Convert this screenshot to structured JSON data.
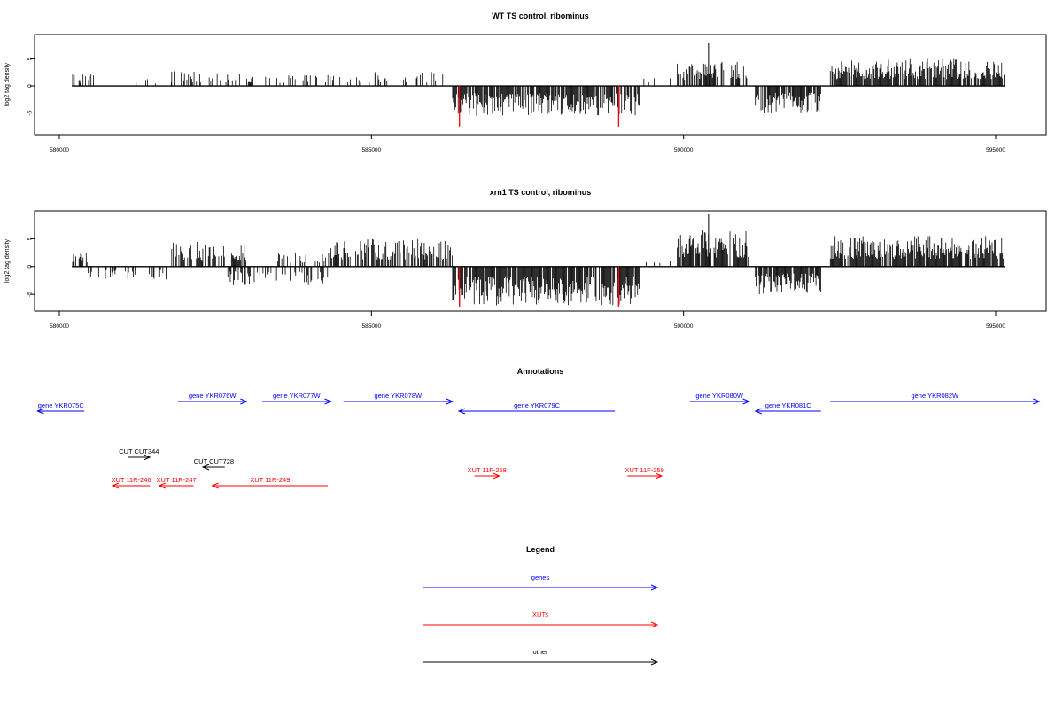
{
  "colors": {
    "gene": "#0000ff",
    "xut": "#ff0000",
    "other": "#000000",
    "highlight": "#ff0000",
    "signal": "#000000",
    "frame": "#000000"
  },
  "chart_data": [
    {
      "type": "bar",
      "title": "WT TS control, ribominus",
      "ylabel": "log2 tag density",
      "xlim": [
        579900,
        595150
      ],
      "ylim": [
        -9,
        9.5
      ],
      "xticks": [
        580000,
        585000,
        590000,
        595000
      ],
      "xtick_labels": [
        "580000",
        "585000",
        "590000",
        "595000"
      ],
      "yticks": [
        -5,
        0,
        5
      ],
      "ytick_labels": [
        "-5",
        "0",
        "5"
      ],
      "grid": false,
      "highlight_x": [
        586410,
        588960
      ],
      "highlight_values": [
        -7.5,
        -7.5
      ],
      "signal_segments": [
        {
          "start": 580200,
          "end": 580550,
          "amp": 2.2,
          "density": 0.35,
          "seed": 1
        },
        {
          "start": 580950,
          "end": 581800,
          "amp": 1.5,
          "density": 0.05,
          "seed": 2
        },
        {
          "start": 581800,
          "end": 583100,
          "amp": 2.8,
          "density": 0.35,
          "seed": 3
        },
        {
          "start": 583100,
          "end": 584200,
          "amp": 2.2,
          "density": 0.15,
          "seed": 4
        },
        {
          "start": 584200,
          "end": 586300,
          "amp": 2.6,
          "density": 0.25,
          "seed": 5
        },
        {
          "start": 586300,
          "end": 589300,
          "amp": -5.5,
          "density": 0.8,
          "seed": 6
        },
        {
          "start": 589300,
          "end": 589900,
          "amp": 1.5,
          "density": 0.1,
          "seed": 7
        },
        {
          "start": 589900,
          "end": 591050,
          "amp": 4.5,
          "density": 0.7,
          "seed": 8
        },
        {
          "start": 591150,
          "end": 592200,
          "amp": -5,
          "density": 0.8,
          "seed": 9
        },
        {
          "start": 592350,
          "end": 595150,
          "amp": 5,
          "density": 0.85,
          "seed": 10
        }
      ],
      "peaks": [
        [
          590400,
          8
        ],
        [
          586410,
          -4.5
        ],
        [
          588960,
          -4.5
        ]
      ]
    },
    {
      "type": "bar",
      "title": "xrn1 TS control, ribominus",
      "ylabel": "log2 tag density",
      "xlim": [
        579900,
        595150
      ],
      "ylim": [
        -8,
        10
      ],
      "xticks": [
        580000,
        585000,
        590000,
        595000
      ],
      "xtick_labels": [
        "580000",
        "585000",
        "590000",
        "595000"
      ],
      "yticks": [
        -5,
        0,
        5
      ],
      "ytick_labels": [
        "-5",
        "0",
        "5"
      ],
      "grid": false,
      "highlight_x": [
        586410,
        588960
      ],
      "highlight_values": [
        -7.2,
        -7.2
      ],
      "signal_segments": [
        {
          "start": 580200,
          "end": 580450,
          "amp": 2.8,
          "density": 0.5,
          "seed": 11
        },
        {
          "start": 580450,
          "end": 580700,
          "amp": -2.8,
          "density": 0.4,
          "seed": 12
        },
        {
          "start": 580700,
          "end": 581800,
          "amp": -2.5,
          "density": 0.3,
          "seed": 13
        },
        {
          "start": 581800,
          "end": 583000,
          "amp": 4.5,
          "density": 0.6,
          "seed": 14
        },
        {
          "start": 582700,
          "end": 584300,
          "amp": -3.5,
          "density": 0.4,
          "seed": 15
        },
        {
          "start": 583500,
          "end": 584300,
          "amp": 2.5,
          "density": 0.3,
          "seed": 16
        },
        {
          "start": 584300,
          "end": 586300,
          "amp": 5,
          "density": 0.6,
          "seed": 17
        },
        {
          "start": 586300,
          "end": 589300,
          "amp": -7,
          "density": 0.9,
          "seed": 18
        },
        {
          "start": 589300,
          "end": 589900,
          "amp": 2,
          "density": 0.2,
          "seed": 19
        },
        {
          "start": 589900,
          "end": 591050,
          "amp": 6.5,
          "density": 0.9,
          "seed": 20
        },
        {
          "start": 591150,
          "end": 592200,
          "amp": -5,
          "density": 0.9,
          "seed": 21
        },
        {
          "start": 592350,
          "end": 595150,
          "amp": 5.5,
          "density": 0.9,
          "seed": 22
        }
      ],
      "peaks": [
        [
          590400,
          9.5
        ],
        [
          586410,
          -7
        ],
        [
          588960,
          -7
        ]
      ]
    }
  ],
  "annotations": {
    "title": "Annotations",
    "features": [
      {
        "label": "gene YKR075C",
        "kind": "gene",
        "start": 579650,
        "end": 580400,
        "strand": "-",
        "row": 1
      },
      {
        "label": "gene YKR076W",
        "kind": "gene",
        "start": 581900,
        "end": 583000,
        "strand": "+",
        "row": 0
      },
      {
        "label": "gene YKR077W",
        "kind": "gene",
        "start": 583250,
        "end": 584350,
        "strand": "+",
        "row": 0
      },
      {
        "label": "gene YKR078W",
        "kind": "gene",
        "start": 584550,
        "end": 586300,
        "strand": "+",
        "row": 0
      },
      {
        "label": "gene YKR079C",
        "kind": "gene",
        "start": 586400,
        "end": 588900,
        "strand": "-",
        "row": 1
      },
      {
        "label": "gene YKR080W",
        "kind": "gene",
        "start": 590100,
        "end": 591050,
        "strand": "+",
        "row": 0
      },
      {
        "label": "gene YKR081C",
        "kind": "gene",
        "start": 591150,
        "end": 592200,
        "strand": "-",
        "row": 1
      },
      {
        "label": "gene YKR082W",
        "kind": "gene",
        "start": 592350,
        "end": 595700,
        "strand": "+",
        "row": 0
      },
      {
        "label": "CUT CUT344",
        "kind": "other",
        "start": 581100,
        "end": 581450,
        "strand": "+",
        "row": 2
      },
      {
        "label": "CUT CUT728",
        "kind": "other",
        "start": 582300,
        "end": 582650,
        "strand": "-",
        "row": 3
      },
      {
        "label": "XUT 11R-246",
        "kind": "xut",
        "start": 580850,
        "end": 581450,
        "strand": "-",
        "row": 5
      },
      {
        "label": "XUT 11R-247",
        "kind": "xut",
        "start": 581600,
        "end": 582150,
        "strand": "-",
        "row": 5
      },
      {
        "label": "XUT 11R-249",
        "kind": "xut",
        "start": 582450,
        "end": 584300,
        "strand": "-",
        "row": 5
      },
      {
        "label": "XUT 11F-258",
        "kind": "xut",
        "start": 586650,
        "end": 587050,
        "strand": "+",
        "row": 4
      },
      {
        "label": "XUT 11F-259",
        "kind": "xut",
        "start": 589100,
        "end": 589650,
        "strand": "+",
        "row": 4
      }
    ]
  },
  "legend": {
    "title": "Legend",
    "items": [
      {
        "label": "genes",
        "kind": "gene"
      },
      {
        "label": "XUTs",
        "kind": "xut"
      },
      {
        "label": "other",
        "kind": "other"
      }
    ]
  }
}
